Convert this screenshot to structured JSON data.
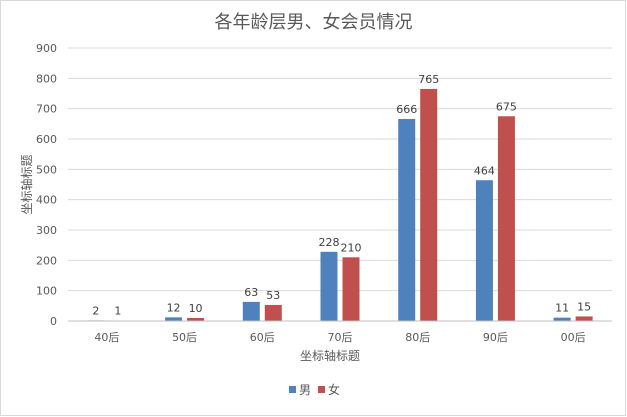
{
  "chart_data": {
    "type": "bar",
    "title": "各年龄层男、女会员情况",
    "xlabel": "坐标轴标题",
    "ylabel": "坐标轴标题",
    "categories": [
      "40后",
      "50后",
      "60后",
      "70后",
      "80后",
      "90后",
      "00后"
    ],
    "series": [
      {
        "name": "男",
        "color": "#4f81bd",
        "values": [
          2,
          12,
          63,
          228,
          666,
          464,
          11
        ]
      },
      {
        "name": "女",
        "color": "#c0504d",
        "values": [
          1,
          10,
          53,
          210,
          765,
          675,
          15
        ]
      }
    ],
    "ylim": [
      0,
      900
    ],
    "yticks": [
      0,
      100,
      200,
      300,
      400,
      500,
      600,
      700,
      800,
      900
    ],
    "grid": true,
    "legend_position": "bottom"
  }
}
